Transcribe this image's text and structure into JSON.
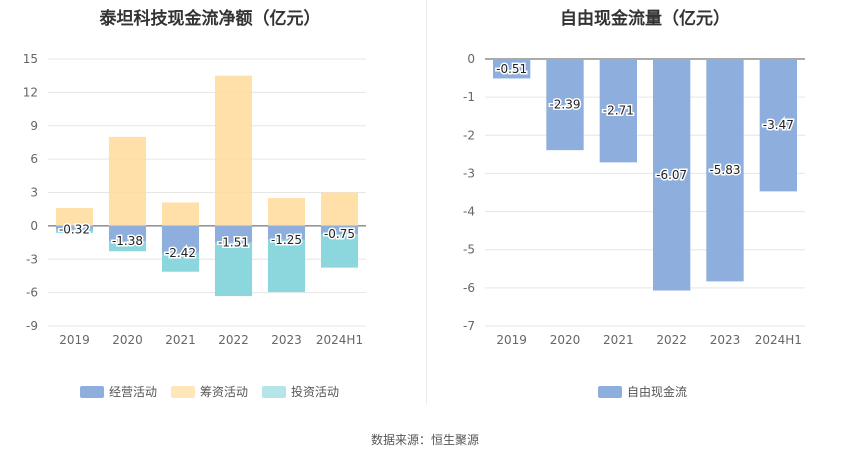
{
  "footer": {
    "source": "数据来源：恒生聚源"
  },
  "chart_data": [
    {
      "type": "bar",
      "stacked": true,
      "title": "泰坦科技现金流净额（亿元）",
      "categories": [
        "2019",
        "2020",
        "2021",
        "2022",
        "2023",
        "2024H1"
      ],
      "ylim": [
        -9,
        15
      ],
      "yticks": [
        15,
        12,
        9,
        6,
        3,
        0,
        -3,
        -6,
        -9
      ],
      "grid": true,
      "legend_position": "bottom",
      "series": [
        {
          "name": "经营活动",
          "color": "#8eaedd",
          "values": [
            -0.32,
            -1.38,
            -2.42,
            -1.51,
            -1.25,
            -0.75
          ]
        },
        {
          "name": "筹资活动",
          "color": "#ffdb9a",
          "values": [
            1.6,
            8.0,
            2.1,
            13.5,
            2.5,
            3.0
          ]
        },
        {
          "name": "投资活动",
          "color": "#86d4db",
          "values": [
            -0.3,
            -0.9,
            -1.7,
            -4.8,
            -4.7,
            -3.0
          ]
        }
      ],
      "data_labels": [
        "-0.32",
        "-1.38",
        "-2.42",
        "-1.51",
        "-1.25",
        "-0.75"
      ]
    },
    {
      "type": "bar",
      "title": "自由现金流量（亿元）",
      "categories": [
        "2019",
        "2020",
        "2021",
        "2022",
        "2023",
        "2024H1"
      ],
      "ylim": [
        -7,
        0
      ],
      "yticks": [
        0,
        -1,
        -2,
        -3,
        -4,
        -5,
        -6,
        -7
      ],
      "grid": true,
      "legend_position": "bottom",
      "series": [
        {
          "name": "自由现金流",
          "color": "#8eaedd",
          "values": [
            -0.51,
            -2.39,
            -2.71,
            -6.07,
            -5.83,
            -3.47
          ]
        }
      ],
      "data_labels": [
        "-0.51",
        "-2.39",
        "-2.71",
        "-6.07",
        "-5.83",
        "-3.47"
      ]
    }
  ]
}
